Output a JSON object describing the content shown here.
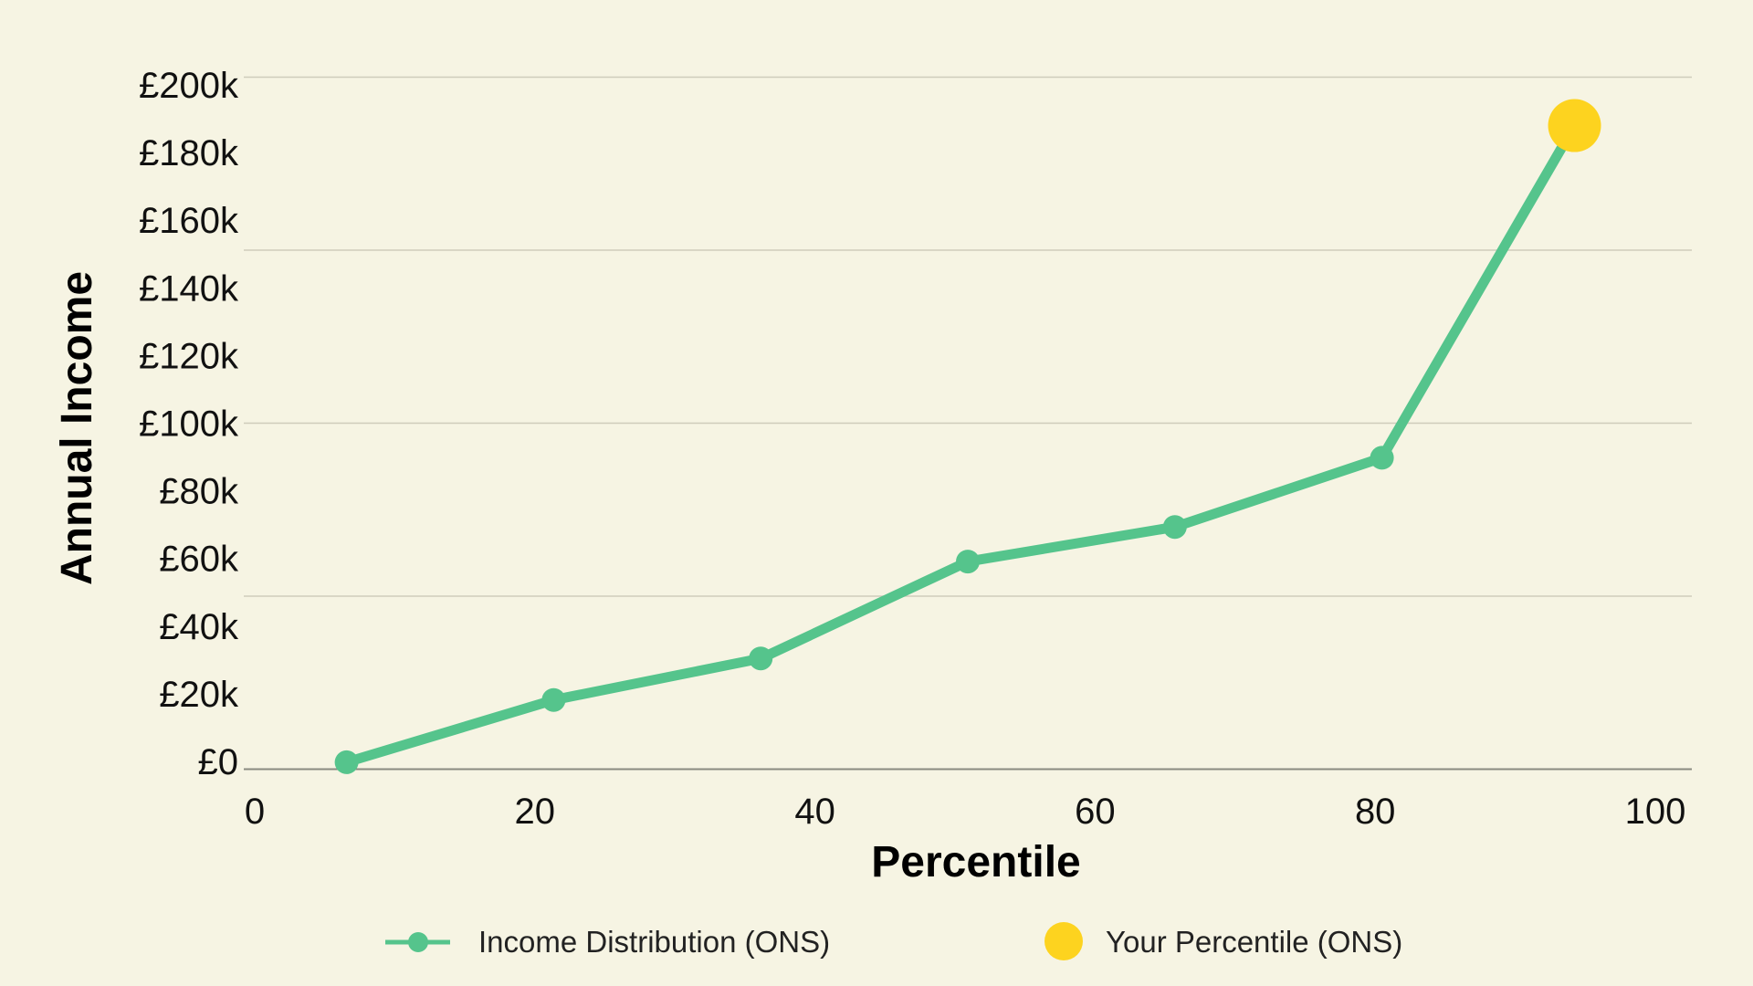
{
  "chart_data": {
    "type": "line",
    "title": "",
    "xlabel": "Percentile",
    "ylabel": "Annual Income",
    "xlim": [
      0,
      100
    ],
    "ylim": [
      0,
      200000
    ],
    "x_ticks": [
      "0",
      "20",
      "40",
      "60",
      "80",
      "100"
    ],
    "y_ticks": [
      "£200k",
      "£180k",
      "£160k",
      "£140k",
      "£120k",
      "£100k",
      "£80k",
      "£60k",
      "£40k",
      "£20k",
      "£0"
    ],
    "gridlines_y": [
      0,
      50000,
      100000,
      150000,
      200000
    ],
    "grid": true,
    "legend_position": "bottom",
    "series": [
      {
        "name": "Income Distribution (ONS)",
        "color": "#55c48c",
        "x": [
          7.1,
          21.4,
          35.7,
          50,
          64.3,
          78.6,
          91.9
        ],
        "y": [
          2000,
          20000,
          32000,
          60000,
          70000,
          90000,
          186000
        ]
      },
      {
        "name": "Your Percentile (ONS)",
        "color": "#fdd31f",
        "x": [
          91.9
        ],
        "y": [
          186000
        ]
      }
    ]
  }
}
